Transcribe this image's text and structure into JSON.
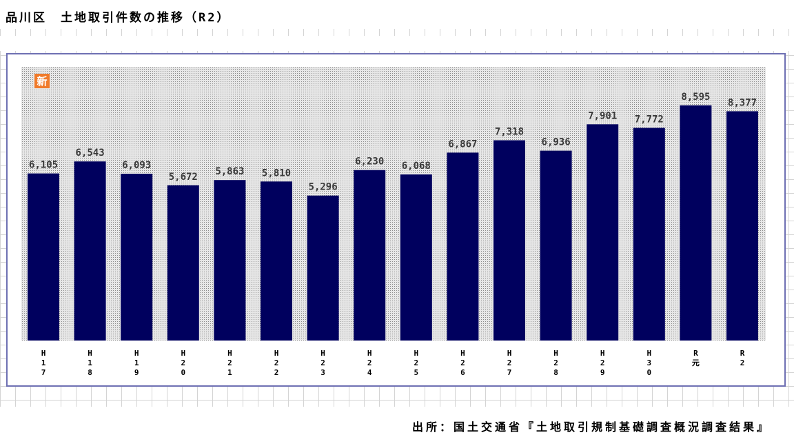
{
  "title": "品川区　土地取引件数の推移（R2）",
  "badge": "新",
  "source": "出所：国土交通省『土地取引規制基礎調査概況調査結果』",
  "colors": {
    "bar": "#00005e",
    "plot_background": "#d6d6d6",
    "frame": "#6e70b3",
    "badge": "#f07a2a"
  },
  "chart_data": {
    "type": "bar",
    "title": "品川区　土地取引件数の推移（R2）",
    "xlabel": "",
    "ylabel": "",
    "ylim": [
      0,
      10000
    ],
    "grid": false,
    "legend": "none",
    "categories": [
      "H17",
      "H18",
      "H19",
      "H20",
      "H21",
      "H22",
      "H23",
      "H24",
      "H25",
      "H26",
      "H27",
      "H28",
      "H29",
      "H30",
      "R元",
      "R2"
    ],
    "values": [
      6105,
      6543,
      6093,
      5672,
      5863,
      5810,
      5296,
      6230,
      6068,
      6867,
      7318,
      6936,
      7901,
      7772,
      8595,
      8377
    ],
    "data_labels": [
      "6,105",
      "6,543",
      "6,093",
      "5,672",
      "5,863",
      "5,810",
      "5,296",
      "6,230",
      "6,068",
      "6,867",
      "7,318",
      "6,936",
      "7,901",
      "7,772",
      "8,595",
      "8,377"
    ]
  }
}
